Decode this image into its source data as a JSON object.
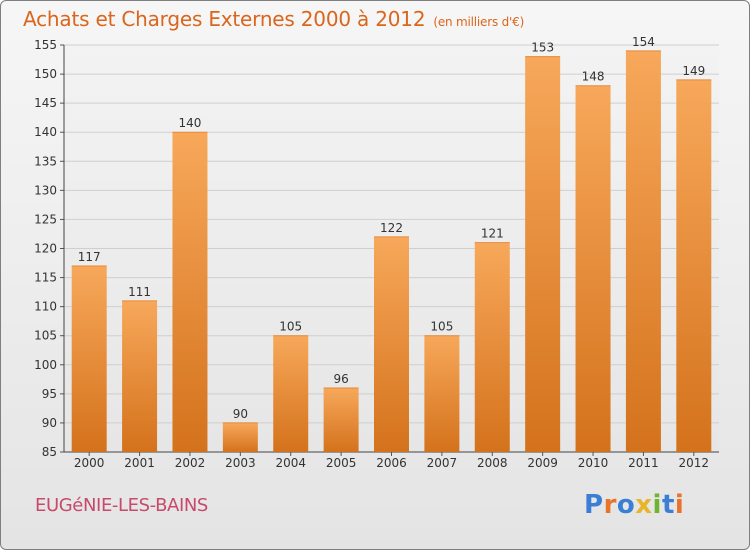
{
  "header": {
    "title": "Achats et Charges Externes 2000 à 2012",
    "unit": "(en milliers d'€)"
  },
  "footer": {
    "commune": "EUGéNIE-LES-BAINS",
    "logo_text": "Proxiti"
  },
  "colors": {
    "title": "#d9661c",
    "commune": "#c84a6a",
    "bar_light": "#f7a85a",
    "bar_dark": "#d4721c",
    "grid": "#cfcfcf",
    "logo_letters": [
      "#3a7fd5",
      "#e8732a",
      "#3a7fd5",
      "#e8b42a",
      "#6fb32f",
      "#3a7fd5",
      "#e8732a"
    ]
  },
  "chart_data": {
    "type": "bar",
    "title": "Achats et Charges Externes 2000 à 2012",
    "subtitle": "(en milliers d'€)",
    "categories": [
      "2000",
      "2001",
      "2002",
      "2003",
      "2004",
      "2005",
      "2006",
      "2007",
      "2008",
      "2009",
      "2010",
      "2011",
      "2012"
    ],
    "values": [
      117,
      111,
      140,
      90,
      105,
      96,
      122,
      105,
      121,
      153,
      148,
      154,
      149
    ],
    "xlabel": "",
    "ylabel": "",
    "ylim": [
      85,
      155
    ],
    "yticks": [
      85,
      90,
      95,
      100,
      105,
      110,
      115,
      120,
      125,
      130,
      135,
      140,
      145,
      150,
      155
    ],
    "grid": true,
    "legend": "none"
  }
}
